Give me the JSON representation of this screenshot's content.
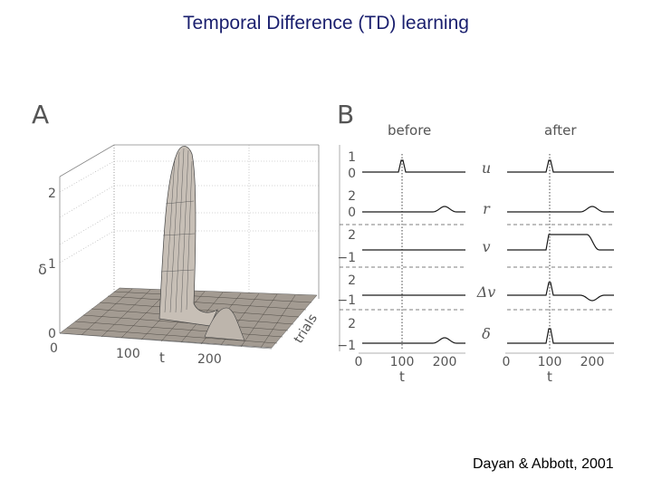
{
  "slide": {
    "title": "Temporal Difference (TD) learning",
    "citation": "Dayan & Abbott, 2001"
  },
  "panel_a": {
    "label": "A",
    "z_axis_label": "δ",
    "z_ticks": [
      "0",
      "1",
      "2"
    ],
    "t_axis_label": "t",
    "t_ticks": [
      "0",
      "100",
      "200"
    ],
    "trials_label": "trials",
    "surface_color": "#b9b1a8"
  },
  "panel_b": {
    "label": "B",
    "col_before": "before",
    "col_after": "after",
    "x_axis_label": "t",
    "x_ticks": [
      "0",
      "100",
      "200"
    ],
    "rows": [
      {
        "name": "u",
        "label": "u",
        "ticks": [
          "1",
          "0"
        ]
      },
      {
        "name": "r",
        "label": "r",
        "ticks": [
          "2",
          "0"
        ]
      },
      {
        "name": "v",
        "label": "v",
        "ticks": [
          "2",
          "−1"
        ]
      },
      {
        "name": "dv",
        "label": "Δv",
        "ticks": [
          "2",
          "−1"
        ]
      },
      {
        "name": "delta",
        "label": "δ",
        "ticks": [
          "2",
          "−1"
        ]
      }
    ]
  }
}
